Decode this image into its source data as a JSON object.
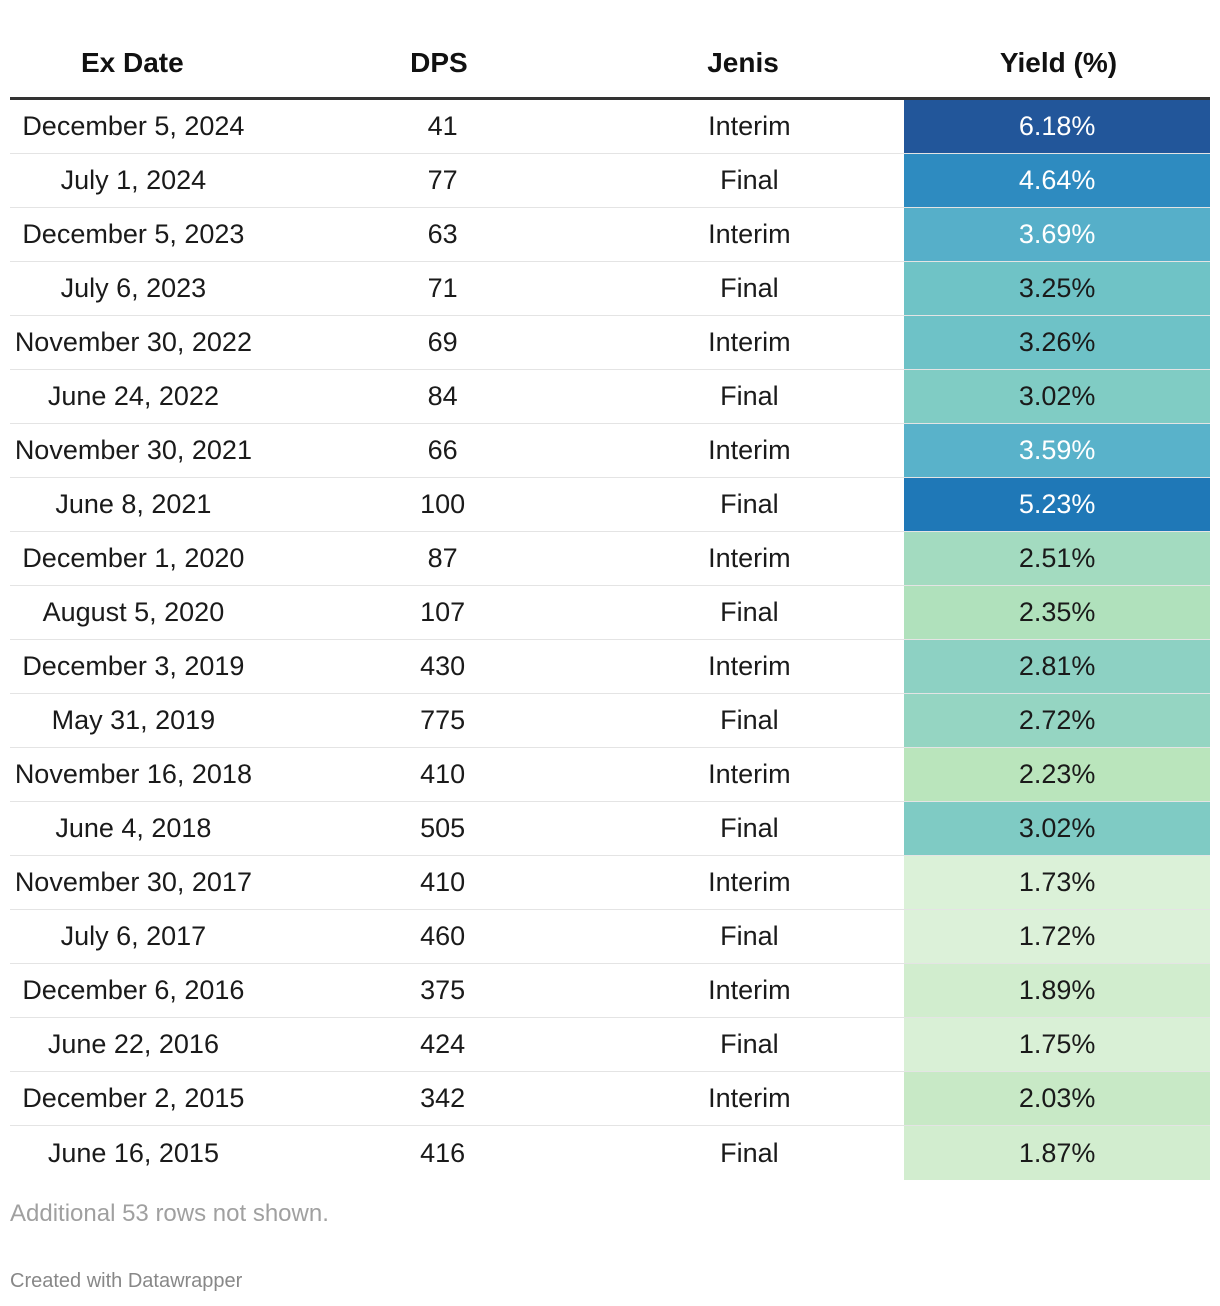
{
  "chart_data": {
    "type": "table",
    "columns": [
      "Ex Date",
      "DPS",
      "Jenis",
      "Yield (%)"
    ],
    "rows": [
      {
        "date": "December 5, 2024",
        "dps": "41",
        "jenis": "Interim",
        "yield": "6.18%",
        "yield_value": 6.18,
        "color": "#22569a",
        "text_color": "#ffffff"
      },
      {
        "date": "July 1, 2024",
        "dps": "77",
        "jenis": "Final",
        "yield": "4.64%",
        "yield_value": 4.64,
        "color": "#2e8bc0",
        "text_color": "#ffffff"
      },
      {
        "date": "December 5, 2023",
        "dps": "63",
        "jenis": "Interim",
        "yield": "3.69%",
        "yield_value": 3.69,
        "color": "#56afc9",
        "text_color": "#ffffff"
      },
      {
        "date": "July 6, 2023",
        "dps": "71",
        "jenis": "Final",
        "yield": "3.25%",
        "yield_value": 3.25,
        "color": "#6fc3c6",
        "text_color": "#1a1a1a"
      },
      {
        "date": "November 30, 2022",
        "dps": "69",
        "jenis": "Interim",
        "yield": "3.26%",
        "yield_value": 3.26,
        "color": "#6ec2c7",
        "text_color": "#1a1a1a"
      },
      {
        "date": "June 24, 2022",
        "dps": "84",
        "jenis": "Final",
        "yield": "3.02%",
        "yield_value": 3.02,
        "color": "#80ccc4",
        "text_color": "#1a1a1a"
      },
      {
        "date": "November 30, 2021",
        "dps": "66",
        "jenis": "Interim",
        "yield": "3.59%",
        "yield_value": 3.59,
        "color": "#59b2ca",
        "text_color": "#ffffff"
      },
      {
        "date": "June 8, 2021",
        "dps": "100",
        "jenis": "Final",
        "yield": "5.23%",
        "yield_value": 5.23,
        "color": "#1f78b7",
        "text_color": "#ffffff"
      },
      {
        "date": "December 1, 2020",
        "dps": "87",
        "jenis": "Interim",
        "yield": "2.51%",
        "yield_value": 2.51,
        "color": "#a3dbc0",
        "text_color": "#1a1a1a"
      },
      {
        "date": "August 5, 2020",
        "dps": "107",
        "jenis": "Final",
        "yield": "2.35%",
        "yield_value": 2.35,
        "color": "#b0e1bc",
        "text_color": "#1a1a1a"
      },
      {
        "date": "December 3, 2019",
        "dps": "430",
        "jenis": "Interim",
        "yield": "2.81%",
        "yield_value": 2.81,
        "color": "#8dd1c3",
        "text_color": "#1a1a1a"
      },
      {
        "date": "May 31, 2019",
        "dps": "775",
        "jenis": "Final",
        "yield": "2.72%",
        "yield_value": 2.72,
        "color": "#95d5c2",
        "text_color": "#1a1a1a"
      },
      {
        "date": "November 16, 2018",
        "dps": "410",
        "jenis": "Interim",
        "yield": "2.23%",
        "yield_value": 2.23,
        "color": "#bae5bc",
        "text_color": "#1a1a1a"
      },
      {
        "date": "June 4, 2018",
        "dps": "505",
        "jenis": "Final",
        "yield": "3.02%",
        "yield_value": 3.02,
        "color": "#7fcbc4",
        "text_color": "#1a1a1a"
      },
      {
        "date": "November 30, 2017",
        "dps": "410",
        "jenis": "Interim",
        "yield": "1.73%",
        "yield_value": 1.73,
        "color": "#dbf1d8",
        "text_color": "#1a1a1a"
      },
      {
        "date": "July 6, 2017",
        "dps": "460",
        "jenis": "Final",
        "yield": "1.72%",
        "yield_value": 1.72,
        "color": "#dcf1d9",
        "text_color": "#1a1a1a"
      },
      {
        "date": "December 6, 2016",
        "dps": "375",
        "jenis": "Interim",
        "yield": "1.89%",
        "yield_value": 1.89,
        "color": "#d1edce",
        "text_color": "#1a1a1a"
      },
      {
        "date": "June 22, 2016",
        "dps": "424",
        "jenis": "Final",
        "yield": "1.75%",
        "yield_value": 1.75,
        "color": "#d9f0d6",
        "text_color": "#1a1a1a"
      },
      {
        "date": "December 2, 2015",
        "dps": "342",
        "jenis": "Interim",
        "yield": "2.03%",
        "yield_value": 2.03,
        "color": "#c8e9c6",
        "text_color": "#1a1a1a"
      },
      {
        "date": "June 16, 2015",
        "dps": "416",
        "jenis": "Final",
        "yield": "1.87%",
        "yield_value": 1.87,
        "color": "#d2edcf",
        "text_color": "#1a1a1a"
      }
    ]
  },
  "footer": {
    "note": "Additional 53 rows not shown.",
    "credit": "Created with Datawrapper"
  }
}
